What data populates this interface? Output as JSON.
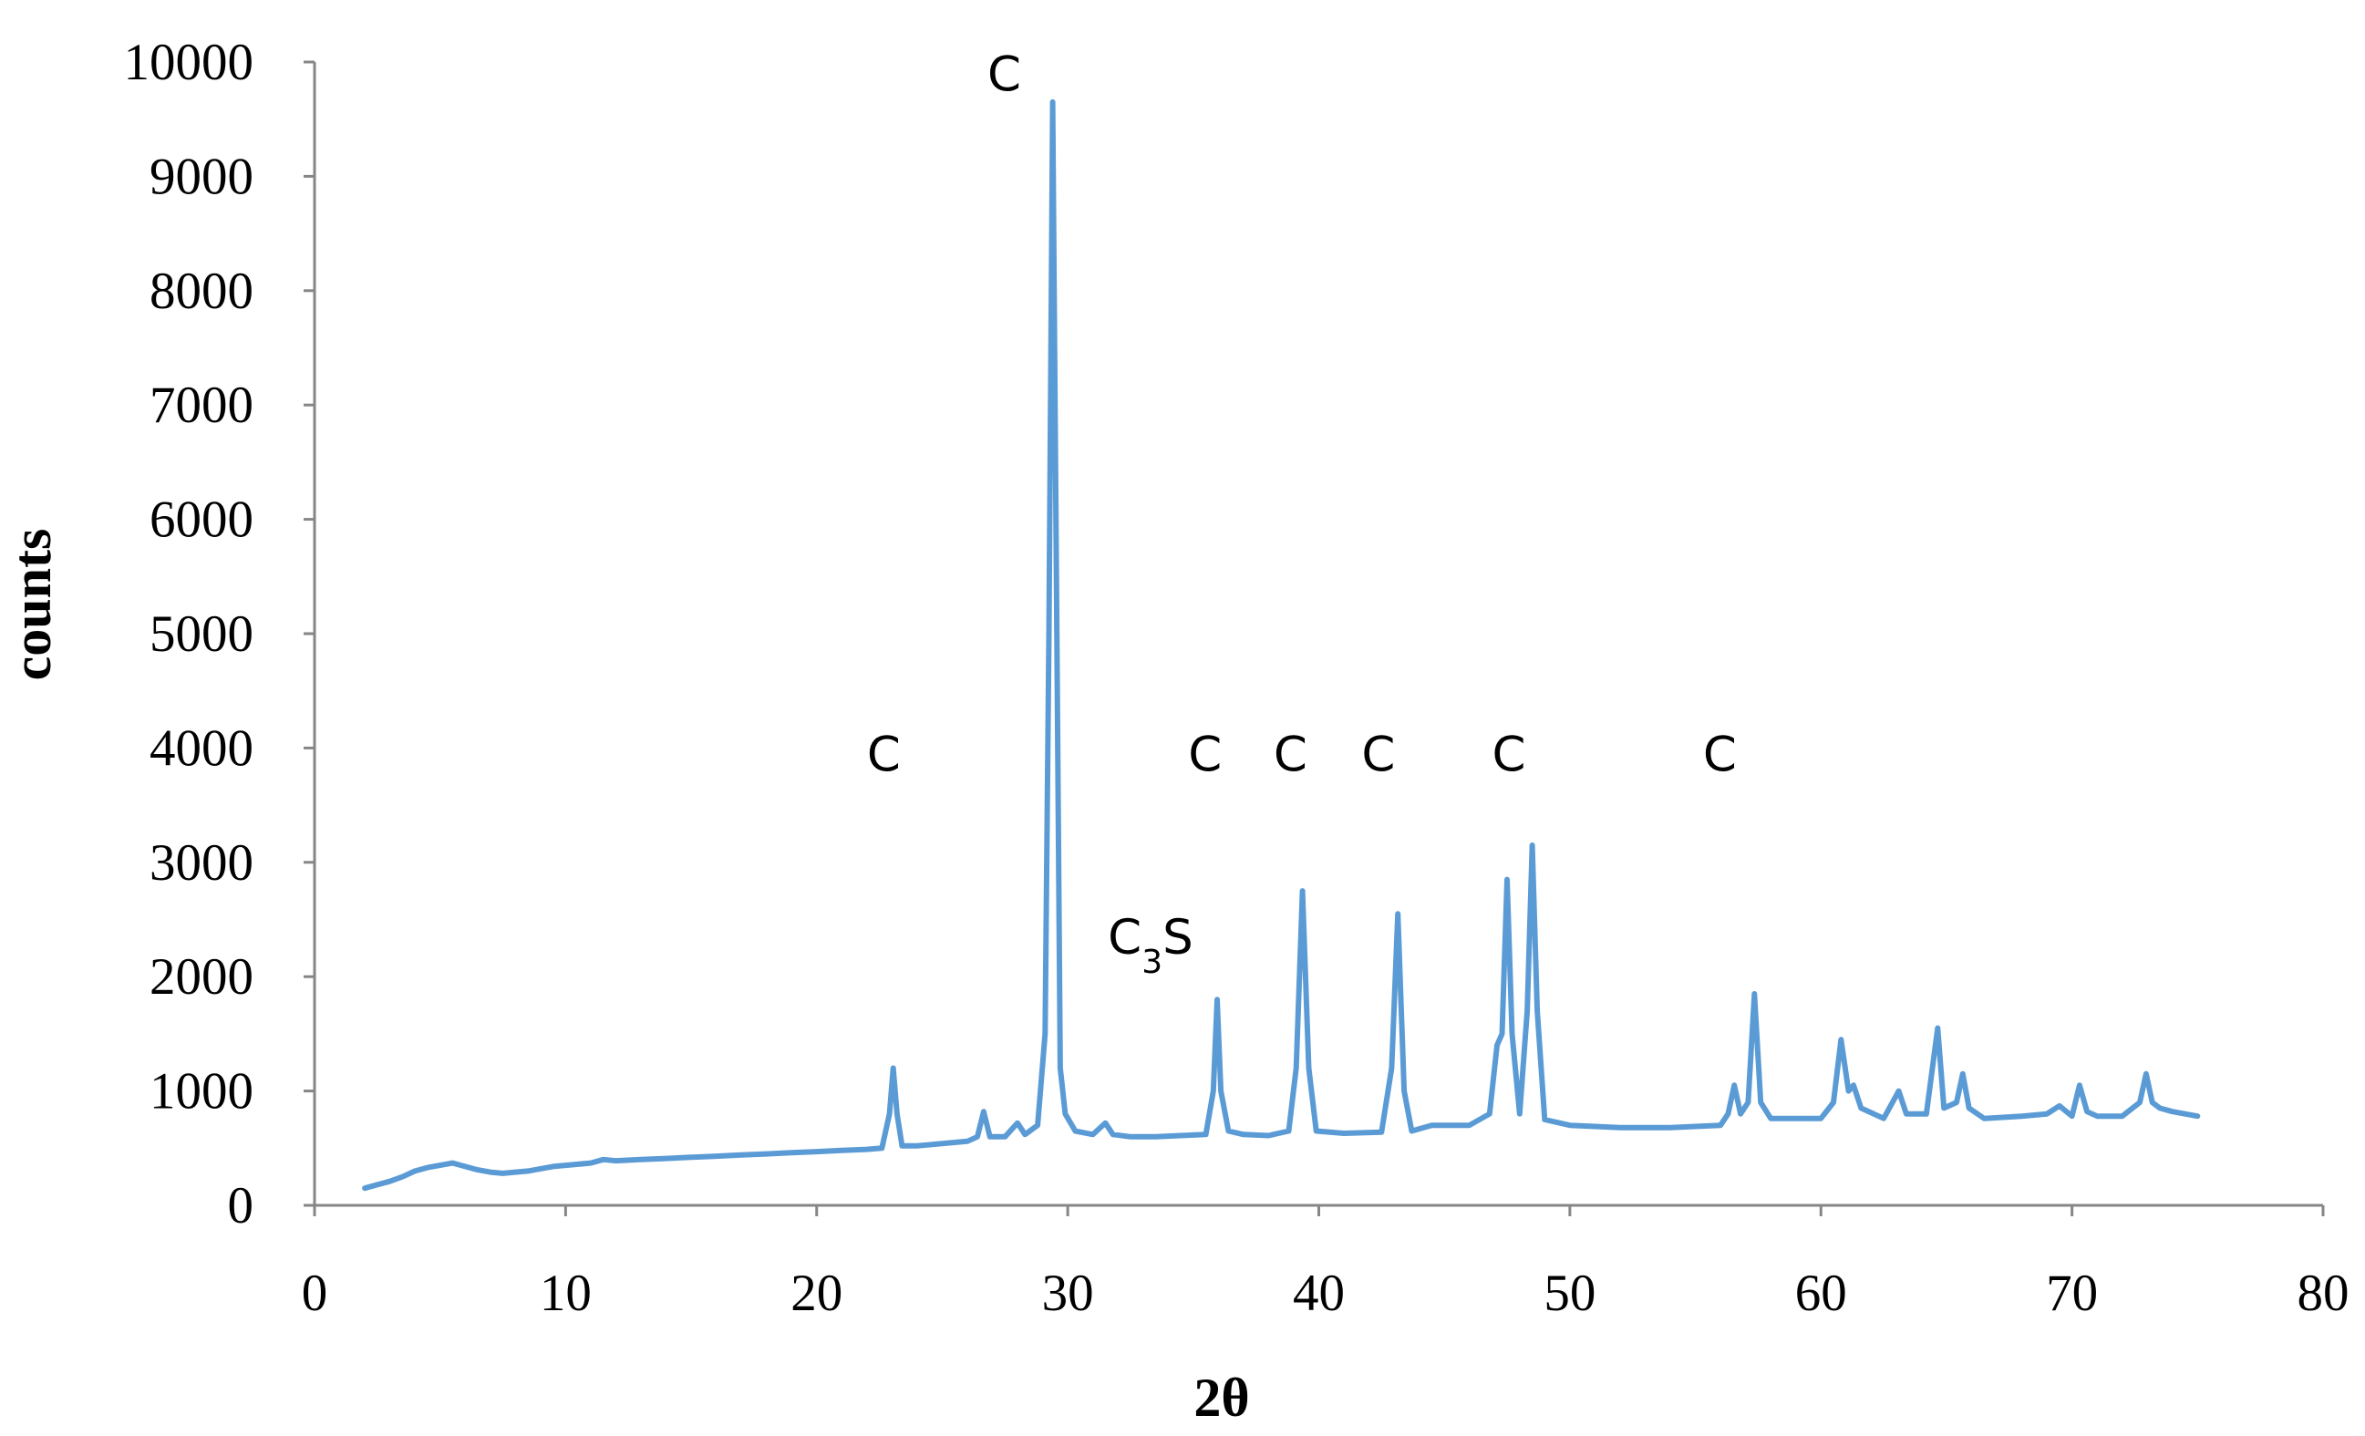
{
  "chart_data": {
    "type": "line",
    "title": "",
    "xlabel": "2θ",
    "ylabel": "counts",
    "xlim": [
      0,
      80
    ],
    "ylim": [
      0,
      10000
    ],
    "x_ticks": [
      0,
      10,
      20,
      30,
      40,
      50,
      60,
      70,
      80
    ],
    "y_ticks": [
      0,
      1000,
      2000,
      3000,
      4000,
      5000,
      6000,
      7000,
      8000,
      9000,
      10000
    ],
    "x_tick_labels": [
      "0",
      "10",
      "20",
      "30",
      "40",
      "50",
      "60",
      "70",
      "80"
    ],
    "y_tick_labels": [
      "0",
      "1000",
      "2000",
      "3000",
      "4000",
      "5000",
      "6000",
      "7000",
      "8000",
      "9000",
      "10000"
    ],
    "grid": false,
    "legend": "none",
    "color": "#5B9BD5",
    "annotations": [
      {
        "text": "C",
        "x": 22,
        "y": 3800
      },
      {
        "text": "C",
        "x": 26.8,
        "y": 9750
      },
      {
        "text": "C₃S",
        "x": 31.6,
        "y": 2200
      },
      {
        "text": "C",
        "x": 34.8,
        "y": 3800
      },
      {
        "text": "C",
        "x": 38.2,
        "y": 3800
      },
      {
        "text": "C",
        "x": 41.7,
        "y": 3800
      },
      {
        "text": "C",
        "x": 46.9,
        "y": 3800
      },
      {
        "text": "C",
        "x": 55.3,
        "y": 3800
      }
    ],
    "series": [
      {
        "values": [
          [
            2,
            150
          ],
          [
            2.5,
            180
          ],
          [
            3,
            210
          ],
          [
            3.5,
            250
          ],
          [
            4,
            300
          ],
          [
            4.5,
            330
          ],
          [
            5,
            350
          ],
          [
            5.5,
            370
          ],
          [
            6,
            340
          ],
          [
            6.5,
            310
          ],
          [
            7,
            290
          ],
          [
            7.5,
            280
          ],
          [
            8,
            290
          ],
          [
            8.5,
            300
          ],
          [
            9,
            320
          ],
          [
            9.5,
            340
          ],
          [
            10,
            350
          ],
          [
            10.5,
            360
          ],
          [
            11,
            370
          ],
          [
            11.5,
            400
          ],
          [
            12,
            390
          ],
          [
            13,
            400
          ],
          [
            14,
            410
          ],
          [
            15,
            420
          ],
          [
            16,
            430
          ],
          [
            17,
            440
          ],
          [
            18,
            450
          ],
          [
            19,
            460
          ],
          [
            20,
            470
          ],
          [
            21,
            480
          ],
          [
            22,
            490
          ],
          [
            22.6,
            500
          ],
          [
            22.9,
            800
          ],
          [
            23.05,
            1200
          ],
          [
            23.2,
            800
          ],
          [
            23.4,
            520
          ],
          [
            24,
            520
          ],
          [
            25,
            540
          ],
          [
            26,
            560
          ],
          [
            26.4,
            600
          ],
          [
            26.65,
            820
          ],
          [
            26.9,
            600
          ],
          [
            27.5,
            600
          ],
          [
            28,
            720
          ],
          [
            28.3,
            620
          ],
          [
            28.8,
            700
          ],
          [
            29.1,
            1500
          ],
          [
            29.25,
            5000
          ],
          [
            29.4,
            9650
          ],
          [
            29.55,
            5500
          ],
          [
            29.7,
            1200
          ],
          [
            29.9,
            800
          ],
          [
            30.3,
            650
          ],
          [
            31,
            620
          ],
          [
            31.5,
            720
          ],
          [
            31.8,
            620
          ],
          [
            32.5,
            600
          ],
          [
            33.5,
            600
          ],
          [
            34.5,
            610
          ],
          [
            35.5,
            620
          ],
          [
            35.8,
            1000
          ],
          [
            35.95,
            1800
          ],
          [
            36.1,
            1000
          ],
          [
            36.4,
            650
          ],
          [
            37,
            620
          ],
          [
            38,
            610
          ],
          [
            38.8,
            650
          ],
          [
            39.1,
            1200
          ],
          [
            39.35,
            2750
          ],
          [
            39.6,
            1200
          ],
          [
            39.9,
            650
          ],
          [
            41,
            630
          ],
          [
            42.5,
            640
          ],
          [
            42.9,
            1200
          ],
          [
            43.15,
            2550
          ],
          [
            43.4,
            1000
          ],
          [
            43.7,
            650
          ],
          [
            44.5,
            700
          ],
          [
            46,
            700
          ],
          [
            46.8,
            800
          ],
          [
            47.1,
            1400
          ],
          [
            47.3,
            1500
          ],
          [
            47.5,
            2850
          ],
          [
            47.7,
            1500
          ],
          [
            48.0,
            800
          ],
          [
            48.3,
            1700
          ],
          [
            48.5,
            3150
          ],
          [
            48.7,
            1700
          ],
          [
            49,
            750
          ],
          [
            50,
            700
          ],
          [
            52,
            680
          ],
          [
            54,
            680
          ],
          [
            56,
            700
          ],
          [
            56.3,
            800
          ],
          [
            56.55,
            1050
          ],
          [
            56.8,
            800
          ],
          [
            57.1,
            900
          ],
          [
            57.35,
            1850
          ],
          [
            57.6,
            900
          ],
          [
            58,
            760
          ],
          [
            59,
            760
          ],
          [
            60,
            760
          ],
          [
            60.5,
            900
          ],
          [
            60.8,
            1450
          ],
          [
            61.1,
            1000
          ],
          [
            61.3,
            1050
          ],
          [
            61.6,
            850
          ],
          [
            62.5,
            760
          ],
          [
            63.1,
            1000
          ],
          [
            63.4,
            800
          ],
          [
            64.2,
            800
          ],
          [
            64.65,
            1550
          ],
          [
            64.9,
            850
          ],
          [
            65.4,
            900
          ],
          [
            65.65,
            1150
          ],
          [
            65.9,
            850
          ],
          [
            66.5,
            760
          ],
          [
            68,
            780
          ],
          [
            69,
            800
          ],
          [
            69.5,
            870
          ],
          [
            70,
            780
          ],
          [
            70.3,
            1050
          ],
          [
            70.6,
            820
          ],
          [
            71,
            780
          ],
          [
            72,
            780
          ],
          [
            72.7,
            900
          ],
          [
            72.95,
            1150
          ],
          [
            73.2,
            900
          ],
          [
            73.5,
            850
          ],
          [
            74,
            820
          ],
          [
            74.5,
            800
          ],
          [
            75,
            780
          ]
        ]
      }
    ]
  }
}
